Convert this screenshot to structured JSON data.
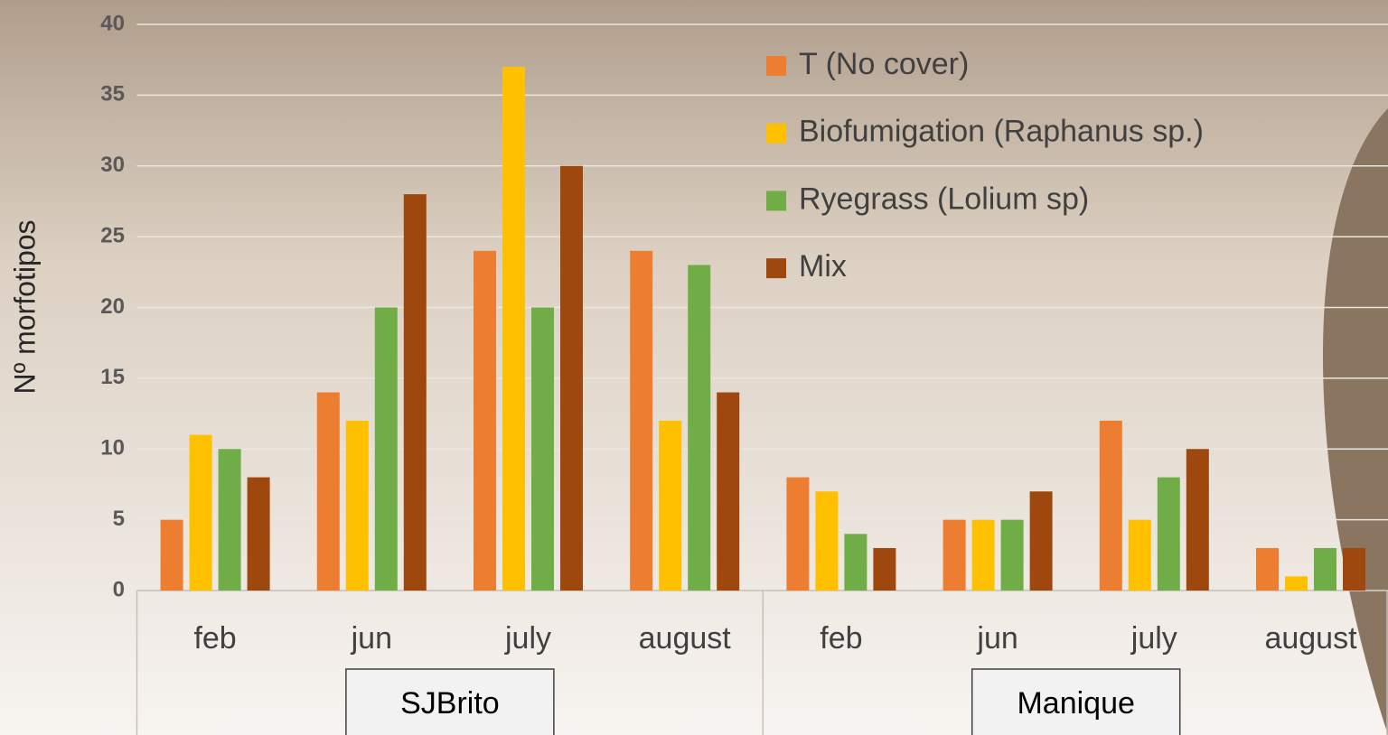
{
  "chart_data": {
    "type": "bar",
    "y_label": "Nº morfotipos",
    "categories": [
      "feb",
      "jun",
      "july",
      "august",
      "feb",
      "jun",
      "july",
      "august"
    ],
    "groups": [
      "SJBrito",
      "Manique"
    ],
    "series": [
      {
        "name": "T (No cover)",
        "color": "#ed7d31",
        "values": [
          5,
          14,
          24,
          24,
          8,
          5,
          12,
          3
        ]
      },
      {
        "name": "Biofumigation (Raphanus sp.)",
        "color": "#ffc000",
        "values": [
          11,
          12,
          37,
          12,
          7,
          5,
          5,
          1
        ]
      },
      {
        "name": "Ryegrass (Lolium sp)",
        "color": "#70ad47",
        "values": [
          10,
          20,
          20,
          23,
          4,
          5,
          8,
          3
        ]
      },
      {
        "name": "Mix",
        "color": "#9e480e",
        "values": [
          8,
          28,
          30,
          14,
          3,
          7,
          10,
          3
        ]
      }
    ],
    "ylim": [
      0,
      40
    ],
    "yticks": [
      0,
      5,
      10,
      15,
      20,
      25,
      30,
      35,
      40
    ],
    "grid": true
  }
}
